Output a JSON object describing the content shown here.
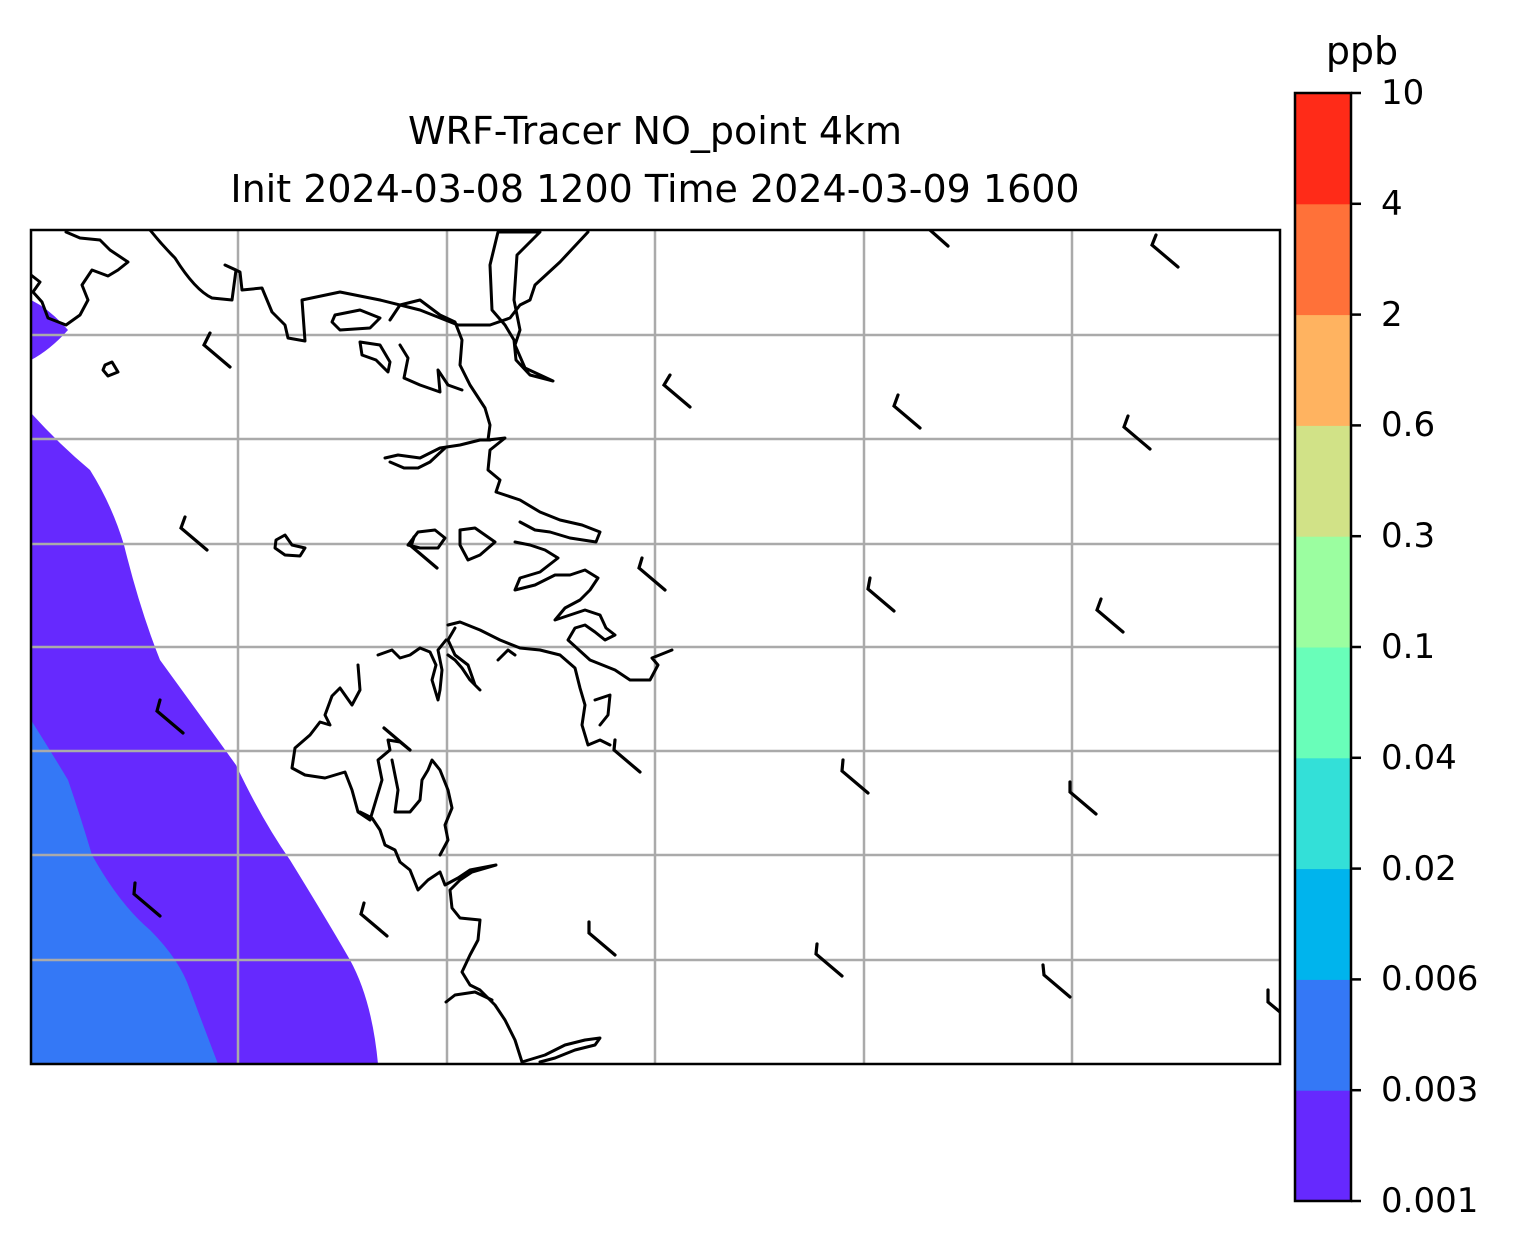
{
  "title": {
    "line1": "WRF-Tracer NO_point 4km",
    "line2": "Init 2024-03-08 1200 Time 2024-03-09 1600"
  },
  "colorbar": {
    "unit": "ppb",
    "levels": [
      "0.001",
      "0.003",
      "0.006",
      "0.02",
      "0.04",
      "0.1",
      "0.3",
      "0.6",
      "2",
      "4",
      "10"
    ],
    "colors": [
      "#6629fe",
      "#3478f6",
      "#00b4ed",
      "#33e0d8",
      "#69feb9",
      "#9bfea0",
      "#d1e287",
      "#ffb360",
      "#ff7139",
      "#ff2b18"
    ]
  },
  "map": {
    "field_fill_colors": {
      "0.001-0.003": "#6629fe",
      "0.003-0.006": "#3478f6"
    },
    "gridline_color": "#aaaaaa",
    "coastline_color": "#000000",
    "wind_barbs": "wind barbs from northwest, 5–10 kt"
  }
}
